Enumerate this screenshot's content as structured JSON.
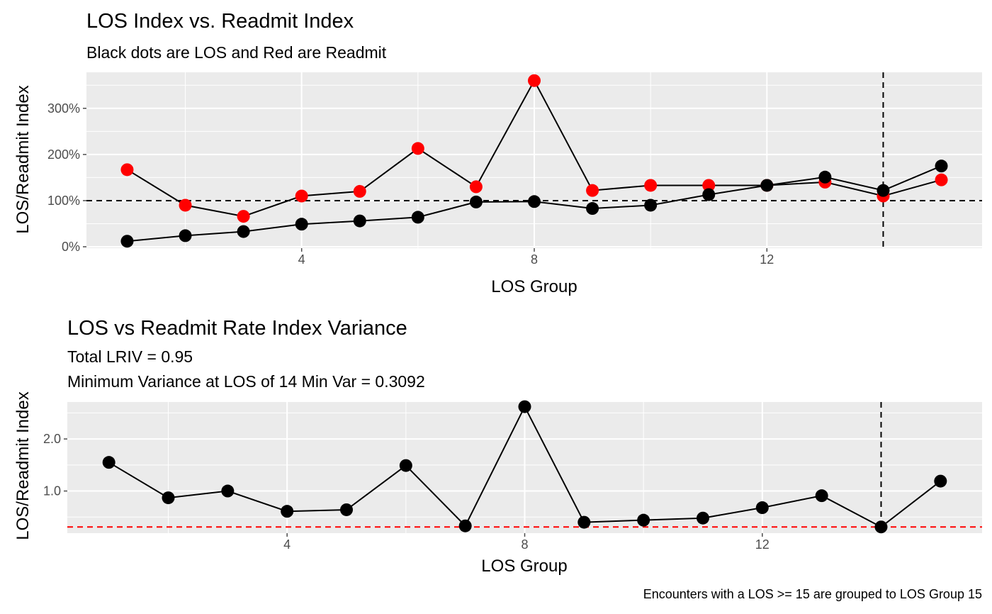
{
  "caption": "Encounters with a LOS >= 15 are grouped to LOS Group 15",
  "colors": {
    "panel": "#ebebeb",
    "grid": "#ffffff",
    "los": "#000000",
    "readmit": "#ff0000",
    "tick": "#4d4d4d",
    "ref_line": "#000000",
    "min_line": "#ff0000"
  },
  "chart_data": [
    {
      "type": "line",
      "title": "LOS Index vs. Readmit Index",
      "subtitle": "Black dots are LOS and Red are Readmit",
      "xlabel": "LOS Group",
      "ylabel": "LOS/Readmit Index",
      "x": [
        1,
        2,
        3,
        4,
        5,
        6,
        7,
        8,
        9,
        10,
        11,
        12,
        13,
        14,
        15
      ],
      "series": [
        {
          "color": "#ff0000",
          "values": [
            1.67,
            0.9,
            0.66,
            1.1,
            1.2,
            2.13,
            1.3,
            3.6,
            1.22,
            1.33,
            1.33,
            1.33,
            1.4,
            1.1,
            1.45
          ]
        },
        {
          "color": "#000000",
          "values": [
            0.12,
            0.24,
            0.33,
            0.49,
            0.56,
            0.64,
            0.97,
            0.98,
            0.83,
            0.9,
            1.13,
            1.33,
            1.51,
            1.22,
            1.75
          ]
        }
      ],
      "xlim": [
        0.3,
        15.7
      ],
      "ylim": [
        -0.03,
        3.78
      ],
      "xticks": [
        4,
        8,
        12
      ],
      "xtick_labels": [
        "4",
        "8",
        "12"
      ],
      "yticks": [
        0,
        1,
        2,
        3
      ],
      "ytick_labels": [
        "0%",
        "100%",
        "200%",
        "300%"
      ],
      "hline": 1.0,
      "vline": 14,
      "grid": true,
      "legend": "none"
    },
    {
      "type": "line",
      "title": "LOS vs Readmit Rate Index Variance",
      "subtitle": [
        "Total LRIV = 0.95",
        "Minimum Variance at LOS of 14 Min Var = 0.3092"
      ],
      "xlabel": "LOS Group",
      "ylabel": "LOS/Readmit Index",
      "x": [
        1,
        2,
        3,
        4,
        5,
        6,
        7,
        8,
        9,
        10,
        11,
        12,
        13,
        14,
        15
      ],
      "series": [
        {
          "color": "#000000",
          "values": [
            1.55,
            0.87,
            1.0,
            0.61,
            0.64,
            1.49,
            0.33,
            2.62,
            0.4,
            0.44,
            0.48,
            0.68,
            0.91,
            0.31,
            1.19
          ]
        }
      ],
      "xlim": [
        0.3,
        15.7
      ],
      "ylim": [
        0.19,
        2.71
      ],
      "xticks": [
        4,
        8,
        12
      ],
      "xtick_labels": [
        "4",
        "8",
        "12"
      ],
      "yticks": [
        1.0,
        2.0
      ],
      "ytick_labels": [
        "1.0",
        "2.0"
      ],
      "hline": 0.3092,
      "vline": 14,
      "grid": true,
      "legend": "none"
    }
  ]
}
